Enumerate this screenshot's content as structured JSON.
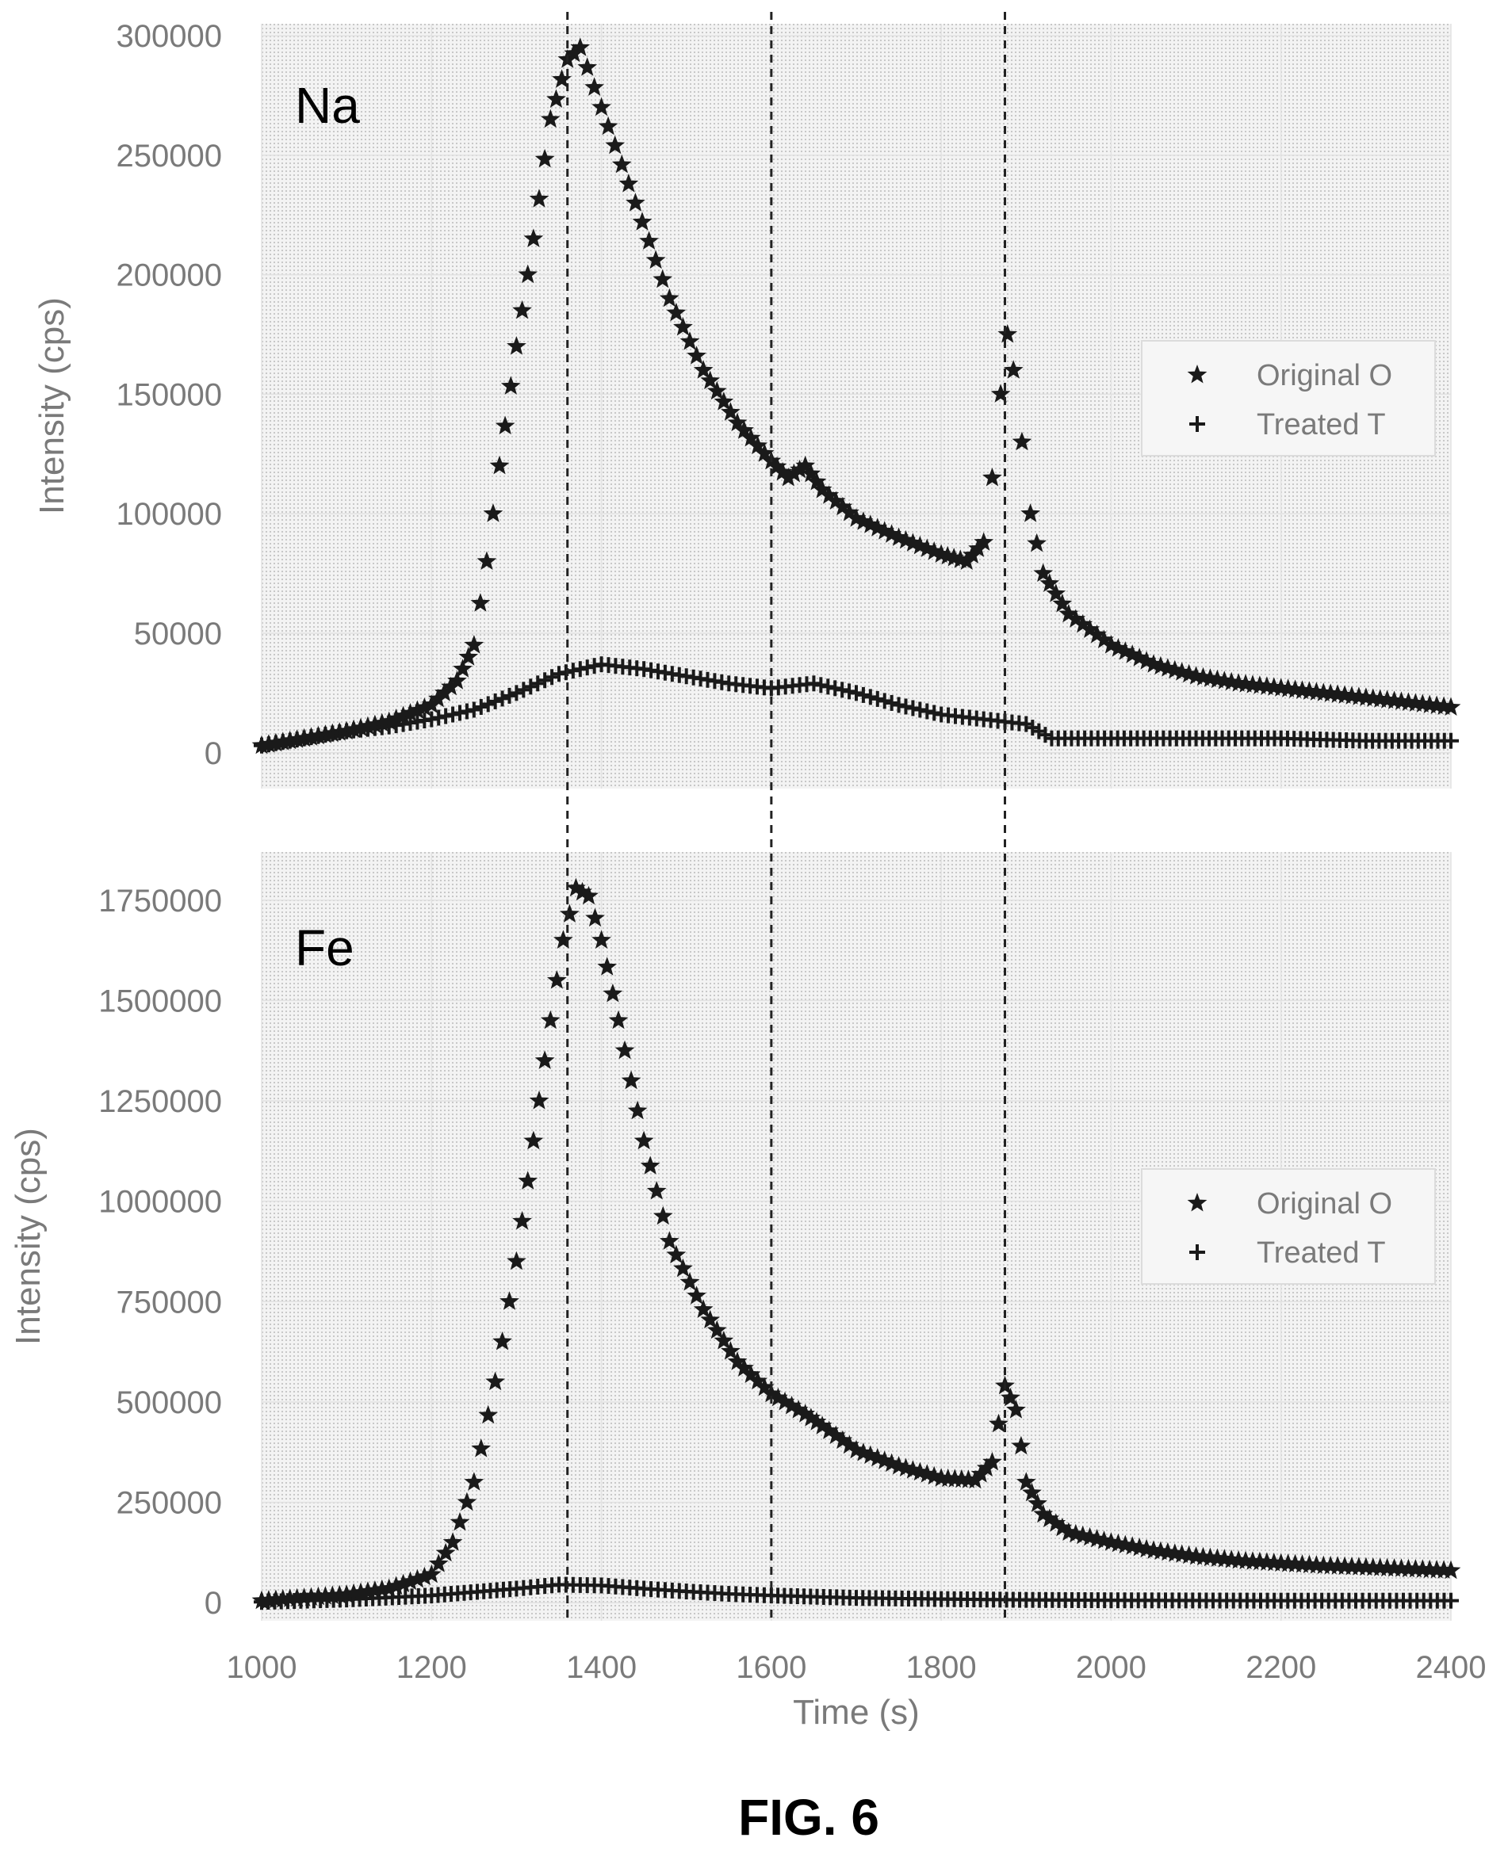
{
  "figure_caption": "FIG. 6",
  "chart_data": [
    {
      "type": "scatter",
      "panel_label": "Na",
      "xlabel": "",
      "ylabel": "Intensity (cps)",
      "xlim": [
        1000,
        2400
      ],
      "ylim": [
        -15000,
        305000
      ],
      "yticks": [
        0,
        50000,
        100000,
        150000,
        200000,
        250000,
        300000
      ],
      "grid": true,
      "legend": "right",
      "series": [
        {
          "name": "Original O",
          "marker": "star",
          "points": [
            [
              1000,
              3000
            ],
            [
              1050,
              6000
            ],
            [
              1100,
              9000
            ],
            [
              1150,
              13000
            ],
            [
              1200,
              20000
            ],
            [
              1230,
              30000
            ],
            [
              1250,
              45000
            ],
            [
              1265,
              80000
            ],
            [
              1280,
              120000
            ],
            [
              1300,
              170000
            ],
            [
              1320,
              215000
            ],
            [
              1340,
              265000
            ],
            [
              1360,
              290000
            ],
            [
              1375,
              295000
            ],
            [
              1400,
              270000
            ],
            [
              1440,
              230000
            ],
            [
              1480,
              190000
            ],
            [
              1520,
              160000
            ],
            [
              1560,
              138000
            ],
            [
              1600,
              122000
            ],
            [
              1620,
              115000
            ],
            [
              1640,
              120000
            ],
            [
              1660,
              110000
            ],
            [
              1700,
              98000
            ],
            [
              1750,
              90000
            ],
            [
              1800,
              83000
            ],
            [
              1830,
              80000
            ],
            [
              1850,
              88000
            ],
            [
              1860,
              115000
            ],
            [
              1870,
              150000
            ],
            [
              1878,
              175000
            ],
            [
              1885,
              160000
            ],
            [
              1895,
              130000
            ],
            [
              1905,
              100000
            ],
            [
              1920,
              75000
            ],
            [
              1950,
              58000
            ],
            [
              2000,
              45000
            ],
            [
              2050,
              37000
            ],
            [
              2100,
              32000
            ],
            [
              2150,
              29000
            ],
            [
              2200,
              27000
            ],
            [
              2250,
              25000
            ],
            [
              2300,
              23000
            ],
            [
              2350,
              21000
            ],
            [
              2400,
              19000
            ]
          ]
        },
        {
          "name": "Treated T",
          "marker": "plus",
          "points": [
            [
              1000,
              3000
            ],
            [
              1050,
              6000
            ],
            [
              1100,
              9000
            ],
            [
              1150,
              11000
            ],
            [
              1200,
              14000
            ],
            [
              1250,
              18000
            ],
            [
              1300,
              25000
            ],
            [
              1350,
              33000
            ],
            [
              1400,
              37000
            ],
            [
              1450,
              35000
            ],
            [
              1500,
              32000
            ],
            [
              1550,
              29000
            ],
            [
              1600,
              27000
            ],
            [
              1650,
              29000
            ],
            [
              1700,
              25000
            ],
            [
              1750,
              20000
            ],
            [
              1800,
              16000
            ],
            [
              1850,
              14000
            ],
            [
              1900,
              12000
            ],
            [
              1930,
              6000
            ],
            [
              2000,
              6000
            ],
            [
              2100,
              6000
            ],
            [
              2200,
              6000
            ],
            [
              2300,
              5000
            ],
            [
              2400,
              5000
            ]
          ]
        }
      ]
    },
    {
      "type": "scatter",
      "panel_label": "Fe",
      "xlabel": "Time (s)",
      "ylabel": "Intensity (cps)",
      "xlim": [
        1000,
        2400
      ],
      "ylim": [
        -45000,
        1870000
      ],
      "xticks": [
        1000,
        1200,
        1400,
        1600,
        1800,
        2000,
        2200,
        2400
      ],
      "yticks": [
        0,
        250000,
        500000,
        750000,
        1000000,
        1250000,
        1500000,
        1750000
      ],
      "grid": true,
      "legend": "right",
      "series": [
        {
          "name": "Original O",
          "marker": "star",
          "points": [
            [
              1000,
              5000
            ],
            [
              1050,
              12000
            ],
            [
              1100,
              20000
            ],
            [
              1150,
              35000
            ],
            [
              1200,
              70000
            ],
            [
              1225,
              150000
            ],
            [
              1250,
              300000
            ],
            [
              1275,
              550000
            ],
            [
              1300,
              850000
            ],
            [
              1320,
              1150000
            ],
            [
              1340,
              1450000
            ],
            [
              1355,
              1650000
            ],
            [
              1370,
              1780000
            ],
            [
              1385,
              1760000
            ],
            [
              1400,
              1650000
            ],
            [
              1420,
              1450000
            ],
            [
              1450,
              1150000
            ],
            [
              1480,
              900000
            ],
            [
              1520,
              730000
            ],
            [
              1560,
              600000
            ],
            [
              1600,
              520000
            ],
            [
              1640,
              470000
            ],
            [
              1660,
              440000
            ],
            [
              1700,
              380000
            ],
            [
              1750,
              340000
            ],
            [
              1800,
              310000
            ],
            [
              1840,
              305000
            ],
            [
              1860,
              350000
            ],
            [
              1875,
              540000
            ],
            [
              1888,
              480000
            ],
            [
              1900,
              300000
            ],
            [
              1920,
              220000
            ],
            [
              1950,
              175000
            ],
            [
              2000,
              150000
            ],
            [
              2050,
              130000
            ],
            [
              2100,
              115000
            ],
            [
              2150,
              105000
            ],
            [
              2200,
              98000
            ],
            [
              2250,
              92000
            ],
            [
              2300,
              88000
            ],
            [
              2350,
              84000
            ],
            [
              2400,
              80000
            ]
          ]
        },
        {
          "name": "Treated T",
          "marker": "plus",
          "points": [
            [
              1000,
              2000
            ],
            [
              1100,
              8000
            ],
            [
              1200,
              18000
            ],
            [
              1300,
              35000
            ],
            [
              1350,
              45000
            ],
            [
              1400,
              43000
            ],
            [
              1450,
              35000
            ],
            [
              1500,
              28000
            ],
            [
              1550,
              22000
            ],
            [
              1600,
              18000
            ],
            [
              1700,
              12000
            ],
            [
              1800,
              9000
            ],
            [
              1900,
              7000
            ],
            [
              2000,
              6000
            ],
            [
              2200,
              5000
            ],
            [
              2400,
              5000
            ]
          ]
        }
      ]
    }
  ],
  "reference_lines_x": [
    1360,
    1600,
    1875
  ]
}
